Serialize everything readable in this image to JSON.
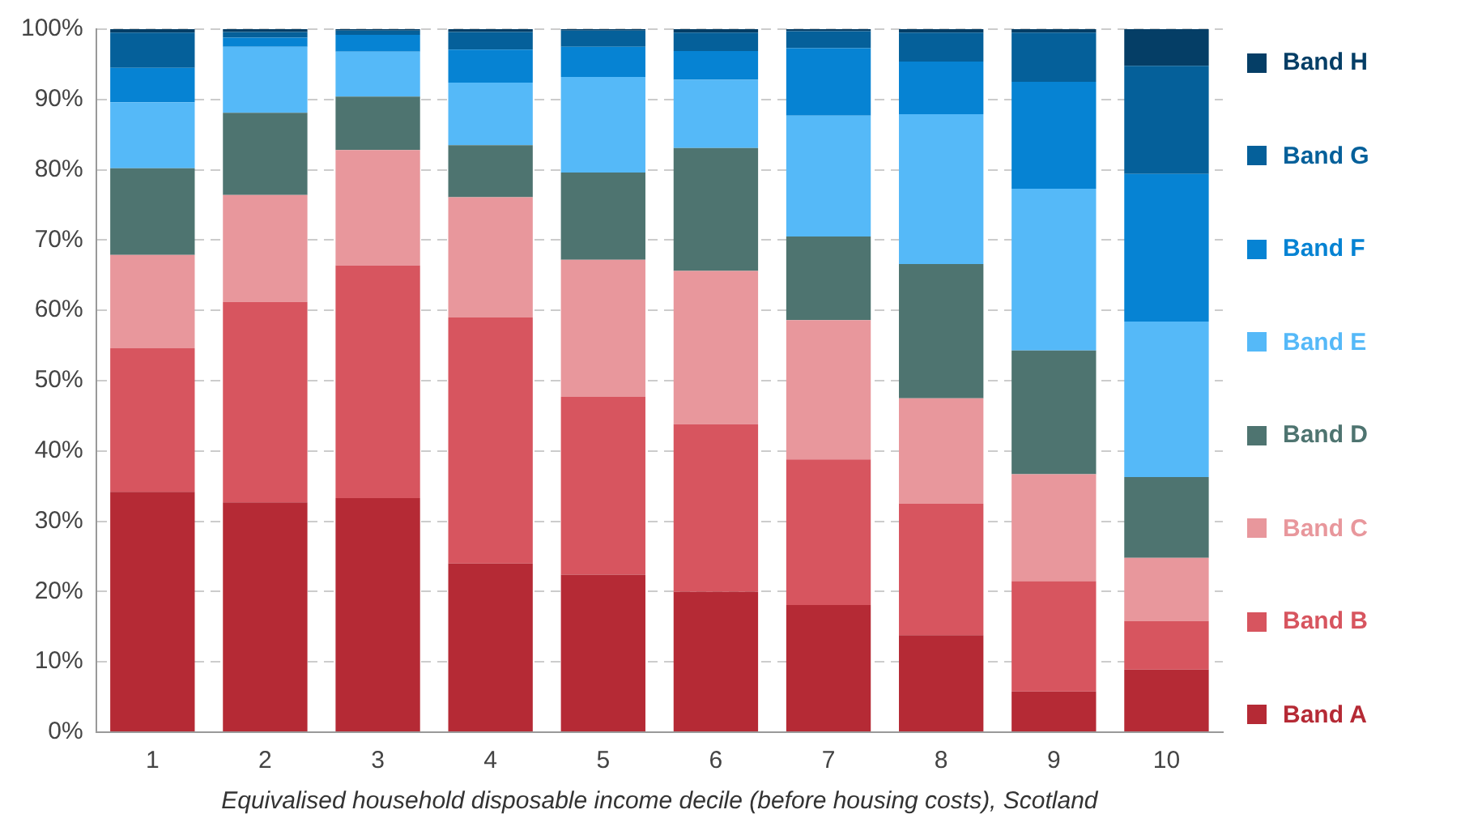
{
  "chart_data": {
    "type": "bar",
    "stacked": true,
    "xlabel": "Equivalised household disposable income decile (before housing costs), Scotland",
    "categories": [
      "1",
      "2",
      "3",
      "4",
      "5",
      "6",
      "7",
      "8",
      "9",
      "10"
    ],
    "series": [
      {
        "name": "Band A",
        "color": "#b52a35",
        "values": [
          34.2,
          32.7,
          33.3,
          24.0,
          22.4,
          20.0,
          18.1,
          13.8,
          5.8,
          8.9
        ]
      },
      {
        "name": "Band B",
        "color": "#d7555f",
        "values": [
          20.4,
          28.5,
          33.1,
          35.0,
          25.3,
          23.8,
          20.7,
          18.7,
          15.7,
          6.9
        ]
      },
      {
        "name": "Band C",
        "color": "#e8979c",
        "values": [
          13.3,
          15.2,
          16.4,
          17.1,
          19.5,
          21.8,
          19.8,
          15.0,
          15.2,
          9.0
        ]
      },
      {
        "name": "Band D",
        "color": "#4e7470",
        "values": [
          12.3,
          11.7,
          7.6,
          7.4,
          12.4,
          17.5,
          11.9,
          19.1,
          17.6,
          11.5
        ]
      },
      {
        "name": "Band E",
        "color": "#55b9f8",
        "values": [
          9.4,
          9.4,
          6.4,
          8.9,
          13.6,
          9.7,
          17.2,
          21.3,
          23.0,
          22.1
        ]
      },
      {
        "name": "Band F",
        "color": "#0683d3",
        "values": [
          4.9,
          1.3,
          2.4,
          4.7,
          4.3,
          4.1,
          9.6,
          7.5,
          15.2,
          21.0
        ]
      },
      {
        "name": "Band G",
        "color": "#05609a",
        "values": [
          5.0,
          0.8,
          0.6,
          2.5,
          2.3,
          2.6,
          2.4,
          4.1,
          7.0,
          15.4
        ]
      },
      {
        "name": "Band H",
        "color": "#053e66",
        "values": [
          0.5,
          0.4,
          0.2,
          0.4,
          0.2,
          0.5,
          0.3,
          0.5,
          0.5,
          5.2
        ]
      }
    ],
    "ylim": [
      0,
      100
    ],
    "yticks": [
      {
        "value": 0,
        "label": "0%"
      },
      {
        "value": 10,
        "label": "10%"
      },
      {
        "value": 20,
        "label": "20%"
      },
      {
        "value": 30,
        "label": "30%"
      },
      {
        "value": 40,
        "label": "40%"
      },
      {
        "value": 50,
        "label": "50%"
      },
      {
        "value": 60,
        "label": "60%"
      },
      {
        "value": 70,
        "label": "70%"
      },
      {
        "value": 80,
        "label": "80%"
      },
      {
        "value": 90,
        "label": "90%"
      },
      {
        "value": 100,
        "label": "100%"
      }
    ],
    "grid": "y",
    "legend": "right"
  }
}
